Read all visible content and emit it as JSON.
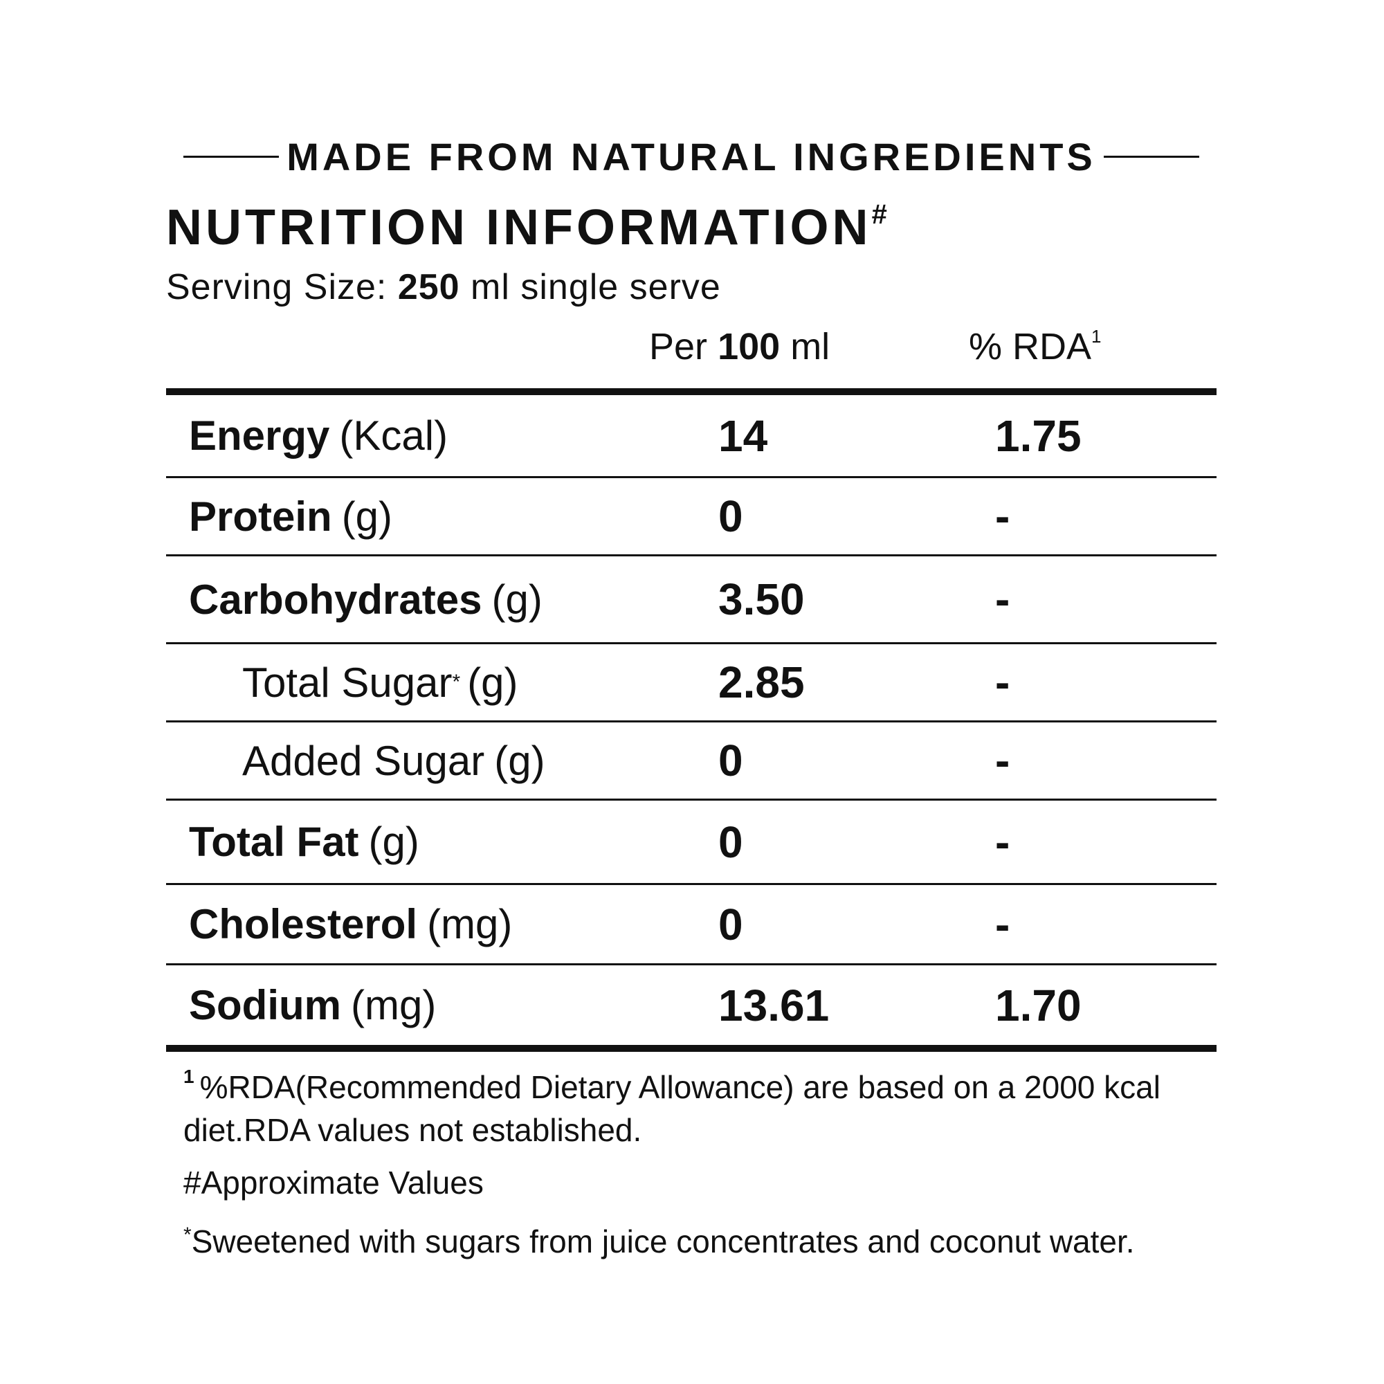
{
  "header": {
    "tagline": "MADE FROM NATURAL INGREDIENTS",
    "title": "NUTRITION INFORMATION",
    "title_mark": "#",
    "serving_label": "Serving Size:",
    "serving_amount": "250",
    "serving_rest": "ml single serve"
  },
  "columns": {
    "per_prefix": "Per",
    "per_value": "100",
    "per_unit": "ml",
    "rda_label": "% RDA",
    "rda_mark": "1"
  },
  "rows": [
    {
      "name": "Energy",
      "unit": "(Kcal)",
      "per": "14",
      "rda": "1.75"
    },
    {
      "name": "Protein",
      "unit": "(g)",
      "per": "0",
      "rda": "-"
    },
    {
      "name": "Carbohydrates",
      "unit": "(g)",
      "per": "3.50",
      "rda": "-"
    },
    {
      "name": "Total Sugar",
      "mark": "*",
      "unit": "(g)",
      "per": "2.85",
      "rda": "-"
    },
    {
      "name": "Added Sugar",
      "unit": "(g)",
      "per": "0",
      "rda": "-"
    },
    {
      "name": "Total Fat",
      "unit": "(g)",
      "per": "0",
      "rda": "-"
    },
    {
      "name": "Cholesterol",
      "unit": "(mg)",
      "per": "0",
      "rda": "-"
    },
    {
      "name": "Sodium",
      "unit": "(mg)",
      "per": "13.61",
      "rda": "1.70"
    }
  ],
  "footnotes": {
    "rda_mark": "1",
    "rda_note": "%RDA(Recommended Dietary Allowance) are based on a 2000 kcal diet.RDA values not established.",
    "approx_note": "#Approximate Values",
    "sugar_mark": "*",
    "sugar_note": "Sweetened with sugars from juice concentrates and coconut water."
  }
}
